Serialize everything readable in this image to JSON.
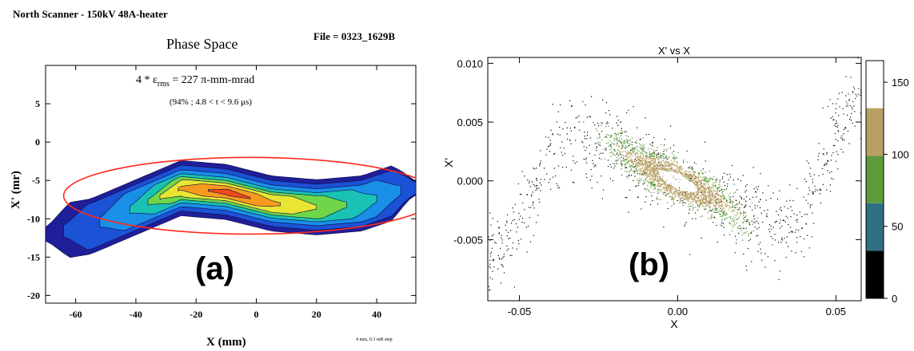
{
  "panel_a": {
    "header": "North Scanner  -  150kV   48A-heater",
    "file_label": "File = 0323_1629B",
    "title": "Phase Space",
    "emittance_prefix": "4 * ",
    "emittance_symbol": "ε",
    "emittance_sub": "rms",
    "emittance_value": " = 227 π-mm-mrad",
    "emittance_note": "(94% ; 4.8 < t < 9.6   μs)",
    "xlabel": "X (mm)",
    "ylabel": "X' (mr)",
    "step_note": "4 mm, 0.3 mR step",
    "panel_label": "(a)",
    "colors": {
      "ellipse": "#ff2a1a"
    }
  },
  "panel_b": {
    "panel_label": "(b)",
    "colorbar": {
      "labels": [
        "0",
        "50",
        "100",
        "150"
      ],
      "colors": [
        "#000000",
        "#2f7082",
        "#5d9a3b",
        "#b8a063",
        "#ffffff"
      ]
    }
  },
  "chart_data": [
    {
      "type": "heatmap",
      "title": "Phase Space",
      "xlabel": "X (mm)",
      "ylabel": "X' (mr)",
      "xlim": [
        -70,
        53
      ],
      "ylim": [
        -21,
        10
      ],
      "x_ticks": [
        "-60",
        "-40",
        "-20",
        "0",
        "20",
        "40"
      ],
      "x_tick_values": [
        -60,
        -40,
        -20,
        0,
        20,
        40
      ],
      "y_ticks": [
        "5",
        "0",
        "-5",
        "-10",
        "-15",
        "-20"
      ],
      "y_tick_values": [
        5,
        0,
        -5,
        -10,
        -15,
        -20
      ],
      "distribution_centerline": [
        [
          -70,
          -12
        ],
        [
          -55,
          -11
        ],
        [
          -40,
          -8.5
        ],
        [
          -25,
          -6
        ],
        [
          -10,
          -6.5
        ],
        [
          5,
          -8
        ],
        [
          20,
          -8.5
        ],
        [
          35,
          -8
        ],
        [
          50,
          -6
        ]
      ],
      "rms_ellipse": {
        "center": [
          -2,
          -7
        ],
        "semi_axes_mm_mr": [
          62,
          5
        ]
      },
      "emittance_4rms_pi_mm_mrad": 227
    },
    {
      "type": "scatter",
      "title": "X' vs X",
      "xlabel": "X",
      "ylabel": "X'",
      "xlim": [
        -0.06,
        0.058
      ],
      "ylim": [
        -0.0102,
        0.0105
      ],
      "x_ticks": [
        "-0.05",
        "0.00",
        "0.05"
      ],
      "x_tick_values": [
        -0.05,
        0.0,
        0.05
      ],
      "y_ticks": [
        "0.010",
        "0.005",
        "0.000",
        "-0.005"
      ],
      "y_tick_values": [
        0.01,
        0.005,
        0.0,
        -0.005
      ],
      "colorbar_range": [
        0,
        165
      ],
      "colorbar_ticks": [
        0,
        50,
        100,
        150
      ],
      "distribution_centerline": [
        [
          -0.055,
          -0.006
        ],
        [
          -0.04,
          0.0025
        ],
        [
          -0.03,
          0.004
        ],
        [
          -0.02,
          0.003
        ],
        [
          -0.01,
          0.0012
        ],
        [
          0.0,
          0.0
        ],
        [
          0.01,
          -0.0012
        ],
        [
          0.02,
          -0.003
        ],
        [
          0.03,
          -0.004
        ],
        [
          0.04,
          -0.0025
        ],
        [
          0.05,
          0.004
        ],
        [
          0.055,
          0.007
        ]
      ]
    }
  ]
}
